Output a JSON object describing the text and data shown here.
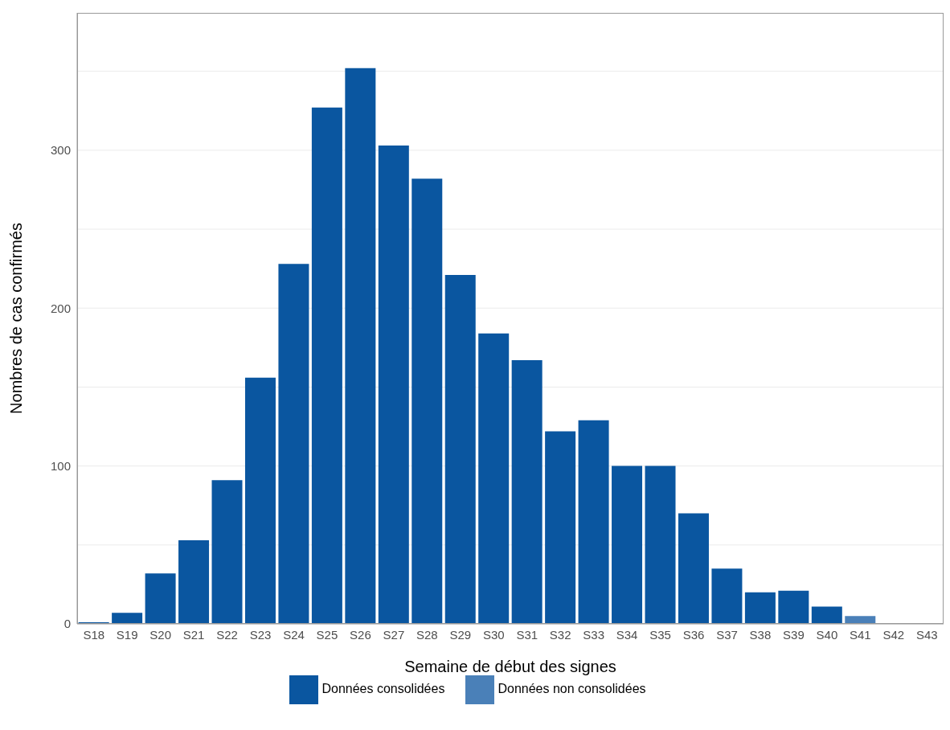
{
  "chart_data": {
    "type": "bar",
    "stacked": true,
    "xlabel": "Semaine de début des signes",
    "ylabel": "Nombres de cas confirmés",
    "categories": [
      "S18",
      "S19",
      "S20",
      "S21",
      "S22",
      "S23",
      "S24",
      "S25",
      "S26",
      "S27",
      "S28",
      "S29",
      "S30",
      "S31",
      "S32",
      "S33",
      "S34",
      "S35",
      "S36",
      "S37",
      "S38",
      "S39",
      "S40",
      "S41",
      "S42",
      "S43"
    ],
    "series": [
      {
        "name": "Données consolidées",
        "color": "#0a56a0",
        "values": [
          1,
          7,
          32,
          53,
          91,
          156,
          228,
          327,
          352,
          303,
          282,
          221,
          184,
          167,
          122,
          129,
          100,
          100,
          70,
          35,
          20,
          21,
          11,
          0,
          0,
          0
        ]
      },
      {
        "name": "Données non consolidées",
        "color": "#4a80b8",
        "values": [
          0,
          0,
          0,
          0,
          0,
          0,
          0,
          0,
          0,
          0,
          0,
          0,
          0,
          0,
          0,
          0,
          0,
          0,
          0,
          0,
          0,
          0,
          0,
          5,
          0,
          0
        ]
      }
    ],
    "ylim": [
      0,
      387
    ],
    "yticks": [
      0,
      {
        "value": 50,
        "label": null
      },
      100,
      {
        "value": 150,
        "label": null
      },
      200,
      {
        "value": 250,
        "label": null
      },
      300,
      {
        "value": 350,
        "label": null
      }
    ],
    "grid": "y",
    "legend": "bottom"
  }
}
